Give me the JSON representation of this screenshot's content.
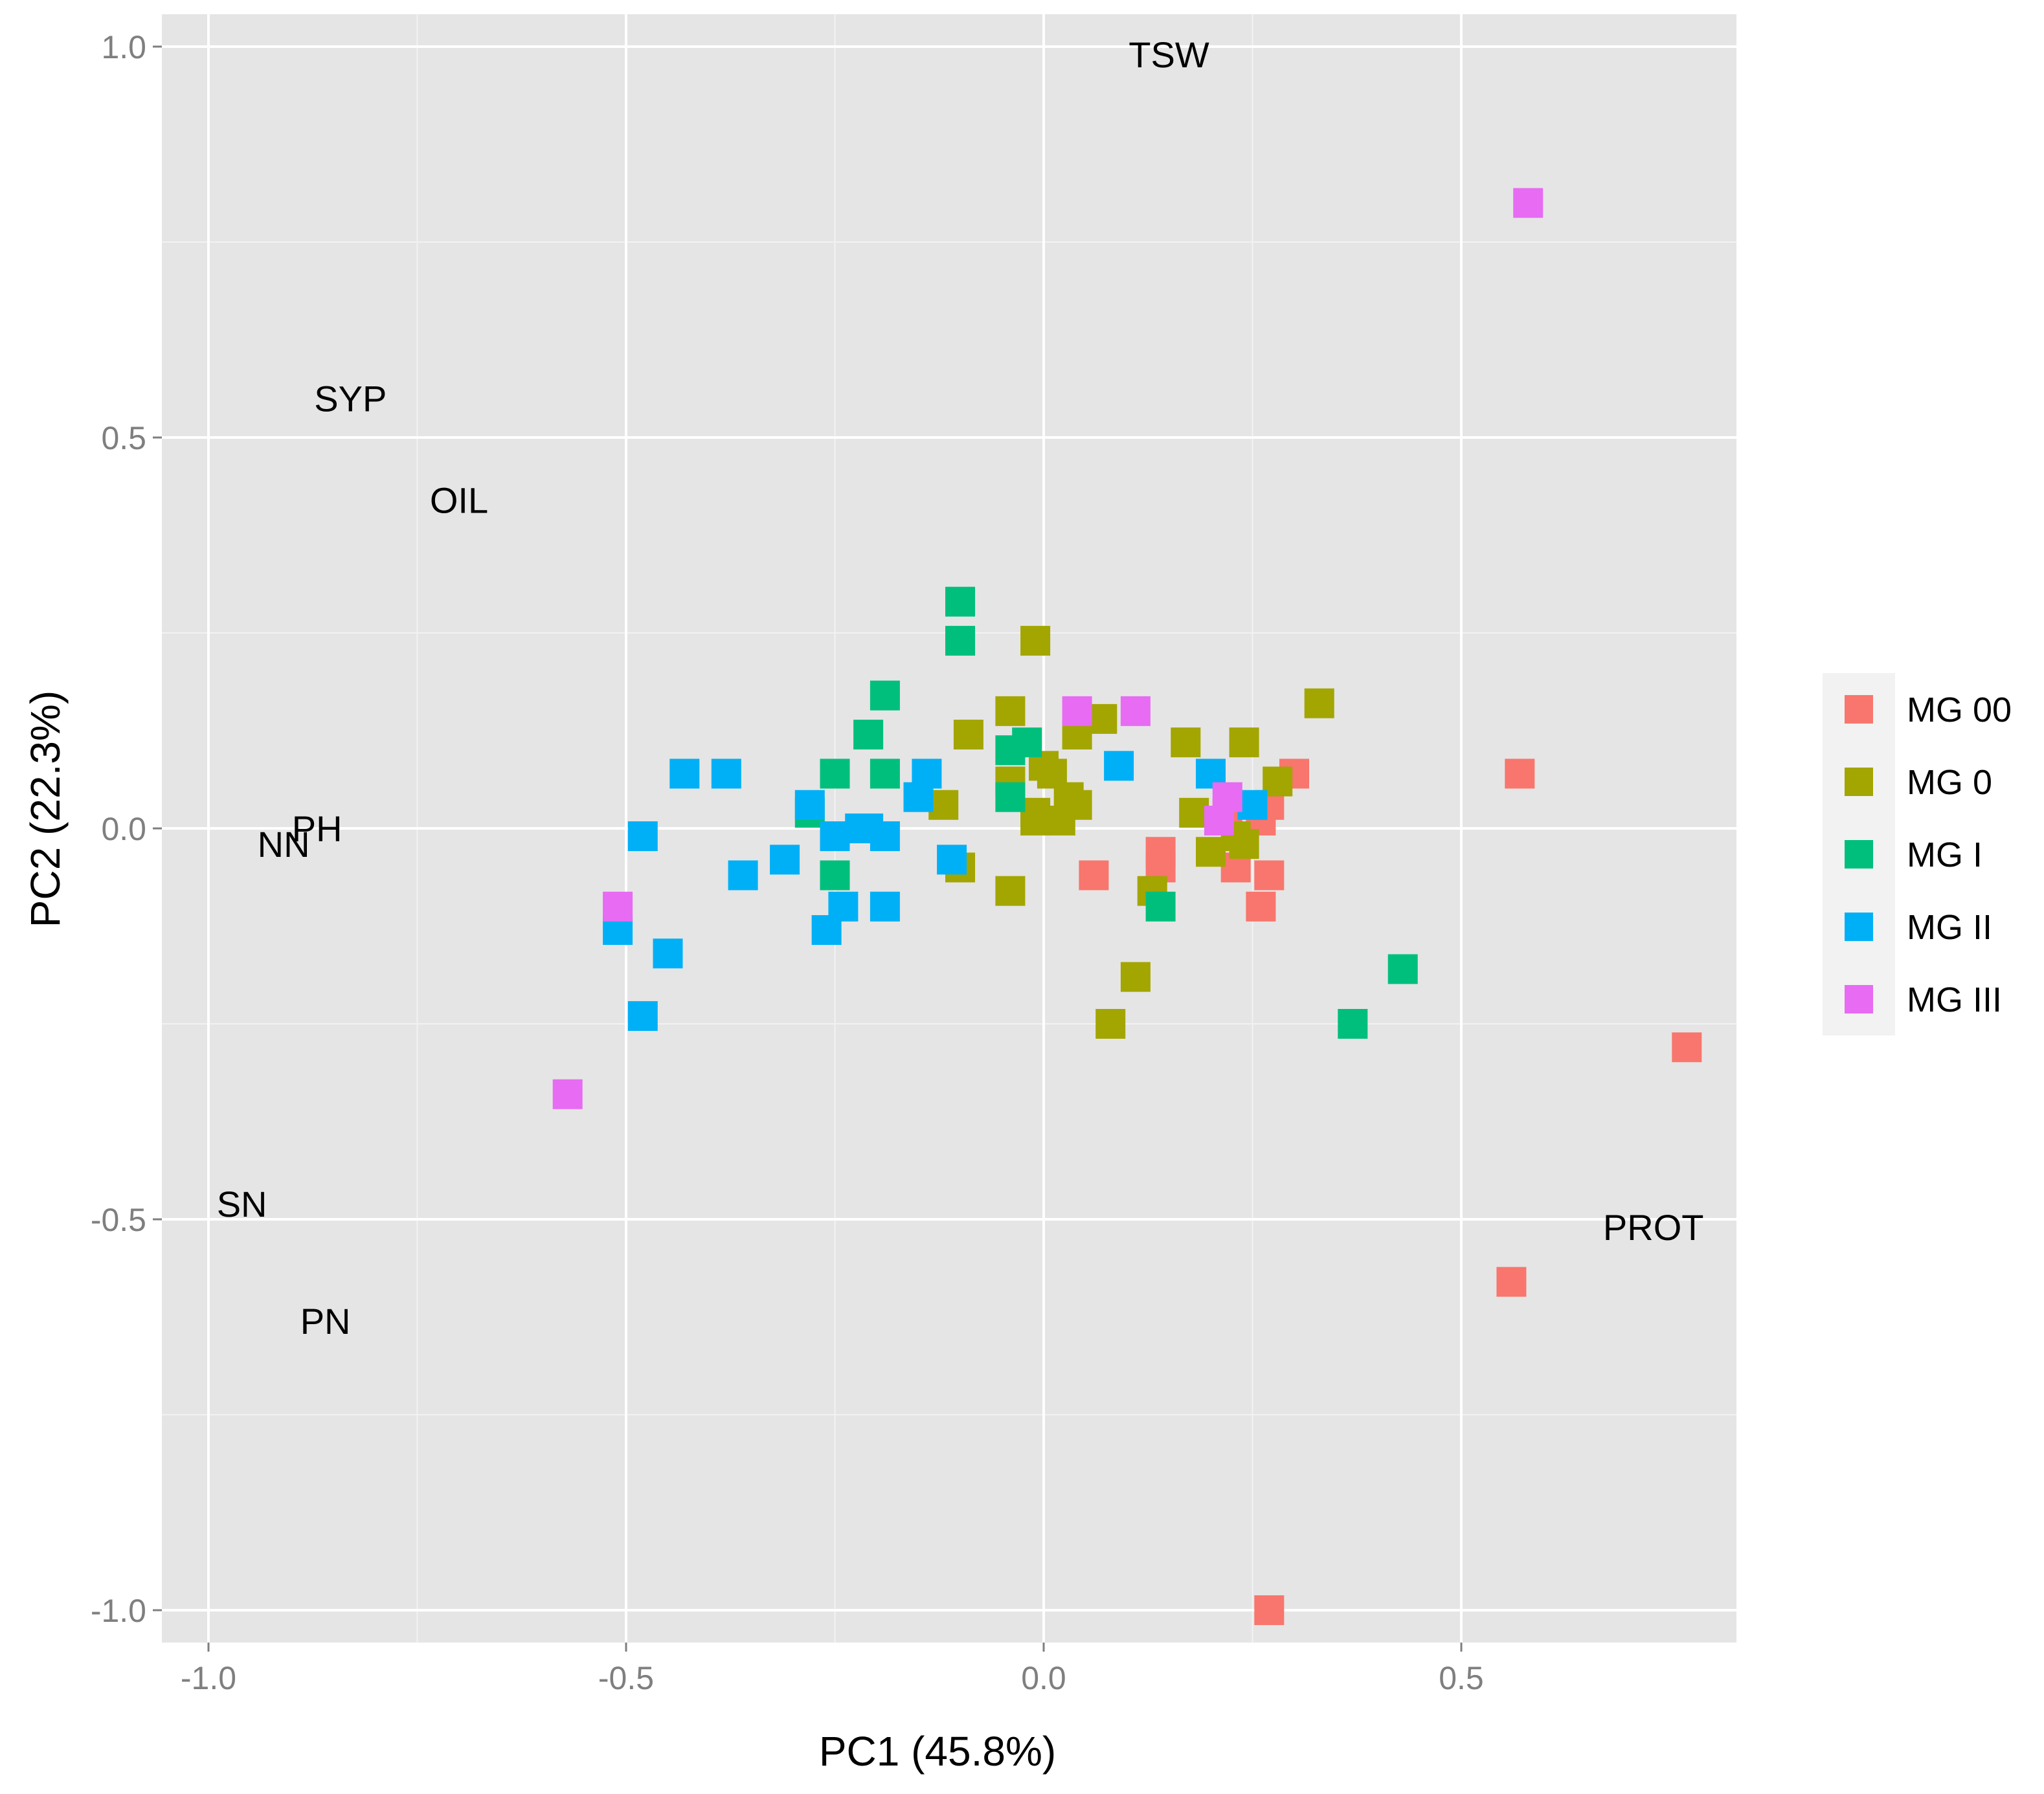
{
  "chart_data": {
    "type": "scatter",
    "title": "",
    "xlabel": "PC1 (45.8%)",
    "ylabel": "PC2 (22.3%)",
    "xlim": [
      -1.06,
      0.83
    ],
    "ylim": [
      -1.04,
      1.04
    ],
    "x_ticks": [
      -1.0,
      -0.5,
      0.0,
      0.5
    ],
    "x_tick_labels": [
      "-1.0",
      "-0.5",
      "0.0",
      "0.5"
    ],
    "y_ticks": [
      -1.0,
      -0.5,
      0.0,
      0.5,
      1.0
    ],
    "y_tick_labels": [
      "-1.0",
      "-0.5",
      "0.0",
      "0.5",
      "1.0"
    ],
    "grid": true,
    "legend_position": "right",
    "variable_labels": [
      {
        "text": "TSW",
        "x": 0.15,
        "y": 0.99
      },
      {
        "text": "SYP",
        "x": -0.83,
        "y": 0.55
      },
      {
        "text": "OIL",
        "x": -0.7,
        "y": 0.42
      },
      {
        "text": "PH",
        "x": -0.87,
        "y": 0.0
      },
      {
        "text": "NN",
        "x": -0.91,
        "y": -0.02
      },
      {
        "text": "SN",
        "x": -0.96,
        "y": -0.48
      },
      {
        "text": "PN",
        "x": -0.86,
        "y": -0.63
      },
      {
        "text": "PROT",
        "x": 0.73,
        "y": -0.51
      }
    ],
    "series": [
      {
        "name": "MG 00",
        "color": "#F8766D",
        "points": [
          [
            0.57,
            0.07
          ],
          [
            0.77,
            -0.28
          ],
          [
            0.56,
            -0.58
          ],
          [
            0.27,
            -1.0
          ],
          [
            0.3,
            0.07
          ],
          [
            0.27,
            0.03
          ],
          [
            0.26,
            0.01
          ],
          [
            0.27,
            -0.06
          ],
          [
            0.26,
            -0.1
          ],
          [
            0.23,
            -0.05
          ],
          [
            0.14,
            -0.03
          ],
          [
            0.14,
            -0.05
          ],
          [
            0.06,
            -0.06
          ],
          [
            0.22,
            0.02
          ]
        ]
      },
      {
        "name": "MG 0",
        "color": "#A3A500",
        "points": [
          [
            -0.01,
            0.24
          ],
          [
            0.33,
            0.16
          ],
          [
            0.07,
            0.14
          ],
          [
            0.04,
            0.12
          ],
          [
            -0.04,
            0.15
          ],
          [
            -0.09,
            0.12
          ],
          [
            0.17,
            0.11
          ],
          [
            0.24,
            0.11
          ],
          [
            0.0,
            0.08
          ],
          [
            0.01,
            0.07
          ],
          [
            0.28,
            0.06
          ],
          [
            -0.04,
            0.06
          ],
          [
            0.03,
            0.04
          ],
          [
            0.04,
            0.03
          ],
          [
            -0.12,
            0.03
          ],
          [
            -0.01,
            0.02
          ],
          [
            0.02,
            0.01
          ],
          [
            -0.01,
            0.01
          ],
          [
            0.18,
            0.02
          ],
          [
            0.2,
            -0.03
          ],
          [
            0.24,
            -0.02
          ],
          [
            0.23,
            -0.01
          ],
          [
            -0.1,
            -0.05
          ],
          [
            -0.04,
            -0.08
          ],
          [
            0.13,
            -0.08
          ],
          [
            0.11,
            -0.19
          ],
          [
            0.08,
            -0.25
          ]
        ]
      },
      {
        "name": "MG I",
        "color": "#00BF7D",
        "points": [
          [
            -0.1,
            0.29
          ],
          [
            -0.1,
            0.24
          ],
          [
            -0.19,
            0.17
          ],
          [
            -0.21,
            0.12
          ],
          [
            -0.25,
            0.07
          ],
          [
            -0.19,
            0.07
          ],
          [
            -0.02,
            0.11
          ],
          [
            -0.04,
            0.1
          ],
          [
            -0.04,
            0.04
          ],
          [
            -0.28,
            0.02
          ],
          [
            -0.25,
            -0.06
          ],
          [
            0.14,
            -0.1
          ],
          [
            0.43,
            -0.18
          ],
          [
            0.37,
            -0.25
          ]
        ]
      },
      {
        "name": "MG II",
        "color": "#00B0F6",
        "points": [
          [
            -0.43,
            0.07
          ],
          [
            -0.38,
            0.07
          ],
          [
            -0.14,
            0.07
          ],
          [
            -0.15,
            0.04
          ],
          [
            -0.28,
            0.03
          ],
          [
            0.09,
            0.08
          ],
          [
            0.2,
            0.07
          ],
          [
            0.25,
            0.03
          ],
          [
            -0.48,
            -0.01
          ],
          [
            -0.25,
            -0.01
          ],
          [
            -0.22,
            0.0
          ],
          [
            -0.21,
            0.0
          ],
          [
            -0.19,
            -0.01
          ],
          [
            -0.36,
            -0.06
          ],
          [
            -0.31,
            -0.04
          ],
          [
            -0.11,
            -0.04
          ],
          [
            -0.24,
            -0.1
          ],
          [
            -0.19,
            -0.1
          ],
          [
            -0.26,
            -0.13
          ],
          [
            -0.51,
            -0.13
          ],
          [
            -0.45,
            -0.16
          ],
          [
            -0.48,
            -0.24
          ]
        ]
      },
      {
        "name": "MG III",
        "color": "#E76BF3",
        "points": [
          [
            0.58,
            0.8
          ],
          [
            0.04,
            0.15
          ],
          [
            0.11,
            0.15
          ],
          [
            0.22,
            0.04
          ],
          [
            0.21,
            0.01
          ],
          [
            -0.51,
            -0.1
          ],
          [
            -0.57,
            -0.34
          ]
        ]
      }
    ]
  }
}
